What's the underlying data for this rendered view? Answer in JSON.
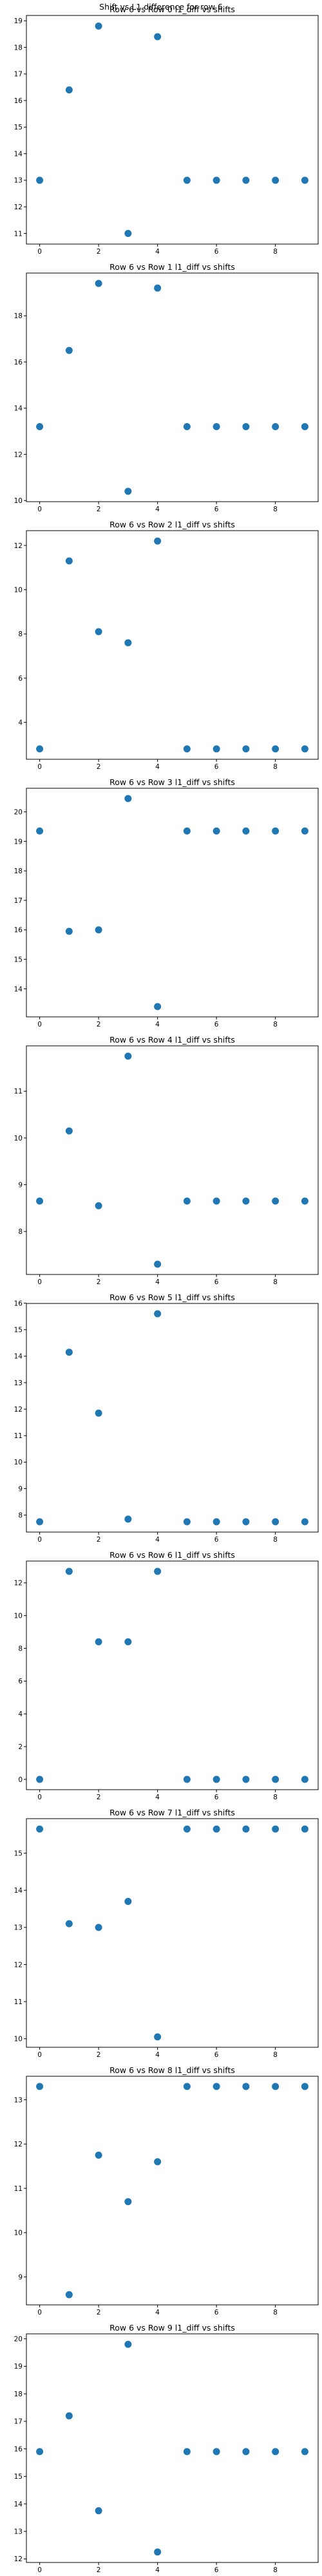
{
  "suptitle": "Shift vs L1 difference for row 6",
  "marker_color": "#1f77b4",
  "xlim": [
    -0.45,
    9.45
  ],
  "xticks": [
    0,
    2,
    4,
    6,
    8
  ],
  "chart_data": [
    {
      "type": "scatter",
      "title": "Row 6 vs Row 0 l1_diff vs shifts",
      "x": [
        0,
        1,
        2,
        3,
        4,
        5,
        6,
        7,
        8,
        9
      ],
      "y": [
        13.0,
        16.4,
        18.8,
        11.0,
        18.4,
        13.0,
        13.0,
        13.0,
        13.0,
        13.0
      ],
      "ylim": [
        10.6,
        19.2
      ],
      "yticks": [
        11,
        12,
        13,
        14,
        15,
        16,
        17,
        18,
        19
      ]
    },
    {
      "type": "scatter",
      "title": "Row 6 vs Row 1 l1_diff vs shifts",
      "x": [
        0,
        1,
        2,
        3,
        4,
        5,
        6,
        7,
        8,
        9
      ],
      "y": [
        13.2,
        16.5,
        19.4,
        10.4,
        19.2,
        13.2,
        13.2,
        13.2,
        13.2,
        13.2
      ],
      "ylim": [
        9.95,
        19.85
      ],
      "yticks": [
        10,
        12,
        14,
        16,
        18
      ]
    },
    {
      "type": "scatter",
      "title": "Row 6 vs Row 2 l1_diff vs shifts",
      "x": [
        0,
        1,
        2,
        3,
        4,
        5,
        6,
        7,
        8,
        9
      ],
      "y": [
        2.8,
        11.3,
        8.1,
        7.6,
        12.2,
        2.8,
        2.8,
        2.8,
        2.8,
        2.8
      ],
      "ylim": [
        2.33,
        12.67
      ],
      "yticks": [
        4,
        6,
        8,
        10,
        12
      ]
    },
    {
      "type": "scatter",
      "title": "Row 6 vs Row 3 l1_diff vs shifts",
      "x": [
        0,
        1,
        2,
        3,
        4,
        5,
        6,
        7,
        8,
        9
      ],
      "y": [
        19.35,
        15.95,
        16.0,
        20.45,
        13.4,
        19.35,
        19.35,
        19.35,
        19.35,
        19.35
      ],
      "ylim": [
        13.05,
        20.8
      ],
      "yticks": [
        14,
        15,
        16,
        17,
        18,
        19,
        20
      ]
    },
    {
      "type": "scatter",
      "title": "Row 6 vs Row 4 l1_diff vs shifts",
      "x": [
        0,
        1,
        2,
        3,
        4,
        5,
        6,
        7,
        8,
        9
      ],
      "y": [
        8.65,
        10.15,
        8.55,
        11.75,
        7.3,
        8.65,
        8.65,
        8.65,
        8.65,
        8.65
      ],
      "ylim": [
        7.08,
        11.97
      ],
      "yticks": [
        8,
        9,
        10,
        11
      ]
    },
    {
      "type": "scatter",
      "title": "Row 6 vs Row 5 l1_diff vs shifts",
      "x": [
        0,
        1,
        2,
        3,
        4,
        5,
        6,
        7,
        8,
        9
      ],
      "y": [
        7.75,
        14.15,
        11.85,
        7.85,
        15.6,
        7.75,
        7.75,
        7.75,
        7.75,
        7.75
      ],
      "ylim": [
        7.36,
        15.99
      ],
      "yticks": [
        8,
        9,
        10,
        11,
        12,
        13,
        14,
        15,
        16
      ]
    },
    {
      "type": "scatter",
      "title": "Row 6 vs Row 6 l1_diff vs shifts",
      "x": [
        0,
        1,
        2,
        3,
        4,
        5,
        6,
        7,
        8,
        9
      ],
      "y": [
        0.0,
        12.7,
        8.4,
        8.4,
        12.7,
        0.0,
        0.0,
        0.0,
        0.0,
        0.0
      ],
      "ylim": [
        -0.63,
        13.33
      ],
      "yticks": [
        0,
        2,
        4,
        6,
        8,
        10,
        12
      ]
    },
    {
      "type": "scatter",
      "title": "Row 6 vs Row 7 l1_diff vs shifts",
      "x": [
        0,
        1,
        2,
        3,
        4,
        5,
        6,
        7,
        8,
        9
      ],
      "y": [
        15.65,
        13.1,
        13.0,
        13.7,
        10.05,
        15.65,
        15.65,
        15.65,
        15.65,
        15.65
      ],
      "ylim": [
        9.77,
        15.93
      ],
      "yticks": [
        10,
        11,
        12,
        13,
        14,
        15
      ]
    },
    {
      "type": "scatter",
      "title": "Row 6 vs Row 8 l1_diff vs shifts",
      "x": [
        0,
        1,
        2,
        3,
        4,
        5,
        6,
        7,
        8,
        9
      ],
      "y": [
        13.3,
        8.6,
        11.75,
        10.7,
        11.6,
        13.3,
        13.3,
        13.3,
        13.3,
        13.3
      ],
      "ylim": [
        8.37,
        13.53
      ],
      "yticks": [
        9,
        10,
        11,
        12,
        13
      ]
    },
    {
      "type": "scatter",
      "title": "Row 6 vs Row 9 l1_diff vs shifts",
      "x": [
        0,
        1,
        2,
        3,
        4,
        5,
        6,
        7,
        8,
        9
      ],
      "y": [
        15.9,
        17.2,
        13.75,
        19.8,
        12.25,
        15.9,
        15.9,
        15.9,
        15.9,
        15.9
      ],
      "ylim": [
        11.87,
        20.18
      ],
      "yticks": [
        12,
        13,
        14,
        15,
        16,
        17,
        18,
        19,
        20
      ]
    }
  ]
}
